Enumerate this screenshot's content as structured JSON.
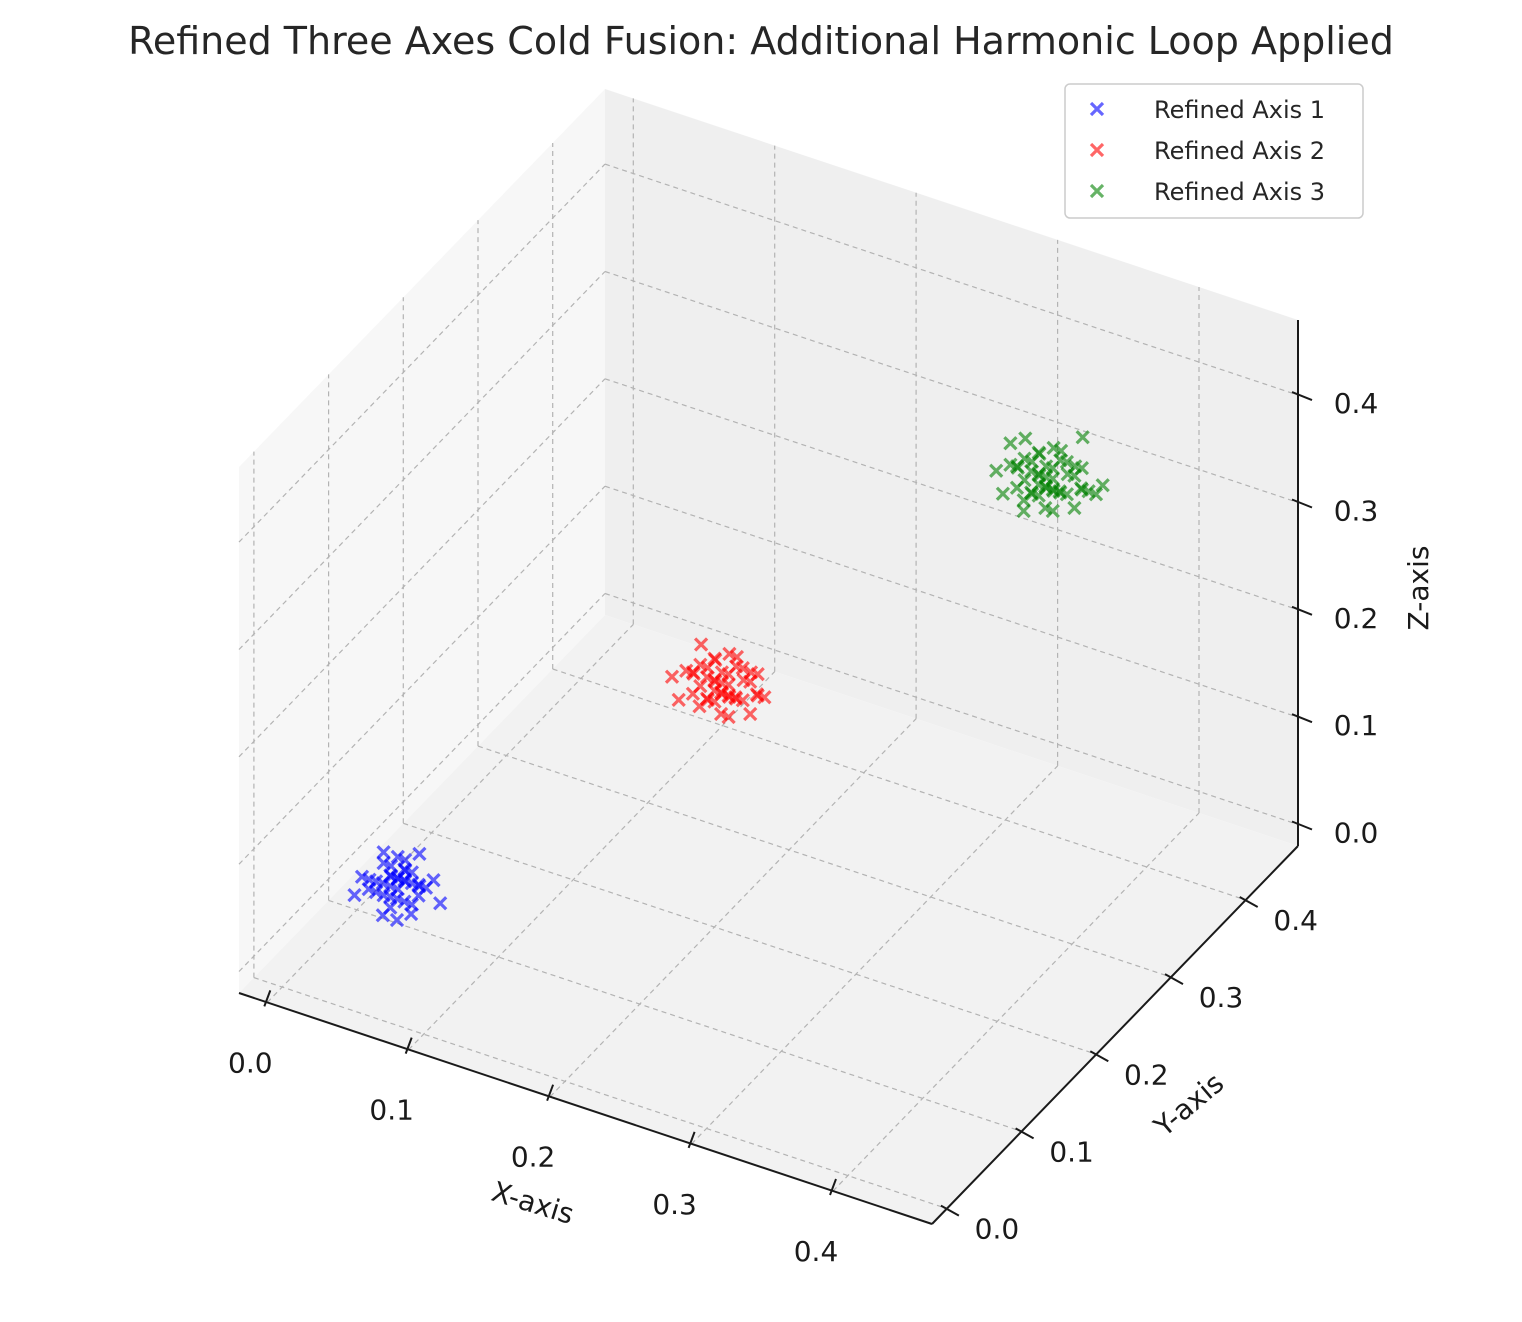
{
  "chart_data": {
    "type": "scatter",
    "projection": "3d",
    "title": "Refined Three Axes Cold Fusion: Additional Harmonic Loop Applied",
    "xlabel": "X-axis",
    "ylabel": "Y-axis",
    "zlabel": "Z-axis",
    "xlim": [
      -0.02,
      0.47
    ],
    "ylim": [
      -0.02,
      0.47
    ],
    "zlim": [
      -0.02,
      0.47
    ],
    "x_ticks": [
      "0.0",
      "0.1",
      "0.2",
      "0.3",
      "0.4"
    ],
    "y_ticks": [
      "0.0",
      "0.1",
      "0.2",
      "0.3",
      "0.4"
    ],
    "z_ticks": [
      "0.0",
      "0.1",
      "0.2",
      "0.3",
      "0.4"
    ],
    "tick_values": [
      0.0,
      0.1,
      0.2,
      0.3,
      0.4
    ],
    "grid": true,
    "marker": "x",
    "legend_position": "top-right",
    "series": [
      {
        "name": "Refined Axis 1",
        "color": "#0000ff",
        "points": [
          [
            0.05,
            0.06,
            0.06
          ],
          [
            0.06,
            0.05,
            0.07
          ],
          [
            0.04,
            0.07,
            0.05
          ],
          [
            0.05,
            0.05,
            0.05
          ],
          [
            0.07,
            0.06,
            0.06
          ],
          [
            0.03,
            0.05,
            0.06
          ],
          [
            0.06,
            0.07,
            0.08
          ],
          [
            0.05,
            0.04,
            0.04
          ],
          [
            0.04,
            0.06,
            0.07
          ],
          [
            0.06,
            0.05,
            0.05
          ],
          [
            0.05,
            0.07,
            0.06
          ],
          [
            0.07,
            0.04,
            0.05
          ],
          [
            0.04,
            0.05,
            0.06
          ],
          [
            0.06,
            0.06,
            0.04
          ],
          [
            0.05,
            0.06,
            0.08
          ],
          [
            0.03,
            0.06,
            0.05
          ],
          [
            0.05,
            0.05,
            0.07
          ],
          [
            0.06,
            0.04,
            0.06
          ],
          [
            0.04,
            0.07,
            0.06
          ],
          [
            0.07,
            0.05,
            0.07
          ],
          [
            0.05,
            0.06,
            0.05
          ],
          [
            0.06,
            0.07,
            0.05
          ],
          [
            0.04,
            0.04,
            0.06
          ],
          [
            0.05,
            0.05,
            0.06
          ],
          [
            0.06,
            0.06,
            0.07
          ],
          [
            0.08,
            0.06,
            0.05
          ],
          [
            0.05,
            0.04,
            0.07
          ],
          [
            0.04,
            0.06,
            0.04
          ],
          [
            0.06,
            0.05,
            0.08
          ],
          [
            0.05,
            0.07,
            0.07
          ],
          [
            0.03,
            0.04,
            0.05
          ],
          [
            0.07,
            0.07,
            0.06
          ],
          [
            0.05,
            0.06,
            0.06
          ],
          [
            0.06,
            0.04,
            0.04
          ],
          [
            0.04,
            0.05,
            0.05
          ],
          [
            0.05,
            0.05,
            0.04
          ],
          [
            0.06,
            0.06,
            0.06
          ],
          [
            0.04,
            0.06,
            0.08
          ],
          [
            0.07,
            0.05,
            0.06
          ],
          [
            0.05,
            0.07,
            0.05
          ]
        ]
      },
      {
        "name": "Refined Axis 2",
        "color": "#ff0000",
        "points": [
          [
            0.2,
            0.21,
            0.2
          ],
          [
            0.21,
            0.2,
            0.21
          ],
          [
            0.19,
            0.22,
            0.19
          ],
          [
            0.22,
            0.2,
            0.2
          ],
          [
            0.2,
            0.19,
            0.22
          ],
          [
            0.18,
            0.2,
            0.21
          ],
          [
            0.21,
            0.22,
            0.2
          ],
          [
            0.2,
            0.2,
            0.19
          ],
          [
            0.22,
            0.21,
            0.21
          ],
          [
            0.19,
            0.19,
            0.2
          ],
          [
            0.2,
            0.22,
            0.22
          ],
          [
            0.21,
            0.19,
            0.19
          ],
          [
            0.18,
            0.21,
            0.2
          ],
          [
            0.23,
            0.21,
            0.2
          ],
          [
            0.2,
            0.2,
            0.23
          ],
          [
            0.19,
            0.21,
            0.18
          ],
          [
            0.21,
            0.21,
            0.22
          ],
          [
            0.2,
            0.18,
            0.2
          ],
          [
            0.22,
            0.19,
            0.21
          ],
          [
            0.19,
            0.2,
            0.22
          ],
          [
            0.21,
            0.2,
            0.18
          ],
          [
            0.2,
            0.23,
            0.21
          ],
          [
            0.17,
            0.2,
            0.2
          ],
          [
            0.22,
            0.22,
            0.19
          ],
          [
            0.2,
            0.21,
            0.21
          ],
          [
            0.21,
            0.21,
            0.19
          ],
          [
            0.19,
            0.22,
            0.21
          ],
          [
            0.23,
            0.2,
            0.21
          ],
          [
            0.2,
            0.19,
            0.2
          ],
          [
            0.18,
            0.19,
            0.19
          ],
          [
            0.21,
            0.2,
            0.22
          ],
          [
            0.2,
            0.22,
            0.18
          ],
          [
            0.22,
            0.2,
            0.23
          ],
          [
            0.19,
            0.2,
            0.2
          ],
          [
            0.21,
            0.23,
            0.2
          ],
          [
            0.2,
            0.2,
            0.21
          ],
          [
            0.18,
            0.22,
            0.22
          ],
          [
            0.22,
            0.21,
            0.18
          ],
          [
            0.2,
            0.21,
            0.19
          ],
          [
            0.21,
            0.19,
            0.21
          ],
          [
            0.19,
            0.21,
            0.21
          ],
          [
            0.2,
            0.2,
            0.2
          ],
          [
            0.22,
            0.22,
            0.21
          ],
          [
            0.21,
            0.2,
            0.2
          ],
          [
            0.19,
            0.19,
            0.22
          ]
        ]
      },
      {
        "name": "Refined Axis 3",
        "color": "#008000",
        "points": [
          [
            0.35,
            0.36,
            0.35
          ],
          [
            0.36,
            0.35,
            0.36
          ],
          [
            0.34,
            0.37,
            0.34
          ],
          [
            0.37,
            0.35,
            0.35
          ],
          [
            0.35,
            0.34,
            0.37
          ],
          [
            0.33,
            0.35,
            0.36
          ],
          [
            0.36,
            0.37,
            0.35
          ],
          [
            0.35,
            0.35,
            0.34
          ],
          [
            0.37,
            0.36,
            0.36
          ],
          [
            0.34,
            0.34,
            0.35
          ],
          [
            0.35,
            0.37,
            0.37
          ],
          [
            0.36,
            0.34,
            0.34
          ],
          [
            0.33,
            0.36,
            0.35
          ],
          [
            0.38,
            0.36,
            0.35
          ],
          [
            0.35,
            0.35,
            0.38
          ],
          [
            0.34,
            0.36,
            0.33
          ],
          [
            0.36,
            0.36,
            0.37
          ],
          [
            0.35,
            0.33,
            0.35
          ],
          [
            0.37,
            0.34,
            0.36
          ],
          [
            0.34,
            0.35,
            0.37
          ],
          [
            0.36,
            0.35,
            0.33
          ],
          [
            0.35,
            0.38,
            0.36
          ],
          [
            0.32,
            0.35,
            0.35
          ],
          [
            0.37,
            0.37,
            0.34
          ],
          [
            0.35,
            0.36,
            0.36
          ],
          [
            0.36,
            0.36,
            0.34
          ],
          [
            0.34,
            0.37,
            0.36
          ],
          [
            0.38,
            0.35,
            0.36
          ],
          [
            0.35,
            0.34,
            0.35
          ],
          [
            0.33,
            0.34,
            0.34
          ],
          [
            0.36,
            0.35,
            0.37
          ],
          [
            0.35,
            0.37,
            0.33
          ],
          [
            0.37,
            0.35,
            0.38
          ],
          [
            0.34,
            0.35,
            0.35
          ],
          [
            0.36,
            0.38,
            0.35
          ],
          [
            0.35,
            0.35,
            0.36
          ],
          [
            0.33,
            0.37,
            0.37
          ],
          [
            0.37,
            0.36,
            0.33
          ],
          [
            0.35,
            0.36,
            0.34
          ],
          [
            0.36,
            0.34,
            0.36
          ],
          [
            0.34,
            0.36,
            0.36
          ],
          [
            0.35,
            0.35,
            0.35
          ],
          [
            0.37,
            0.37,
            0.36
          ],
          [
            0.36,
            0.35,
            0.35
          ],
          [
            0.34,
            0.34,
            0.37
          ],
          [
            0.39,
            0.36,
            0.36
          ],
          [
            0.36,
            0.39,
            0.37
          ],
          [
            0.33,
            0.35,
            0.38
          ],
          [
            0.38,
            0.37,
            0.34
          ],
          [
            0.35,
            0.33,
            0.34
          ]
        ]
      }
    ]
  }
}
